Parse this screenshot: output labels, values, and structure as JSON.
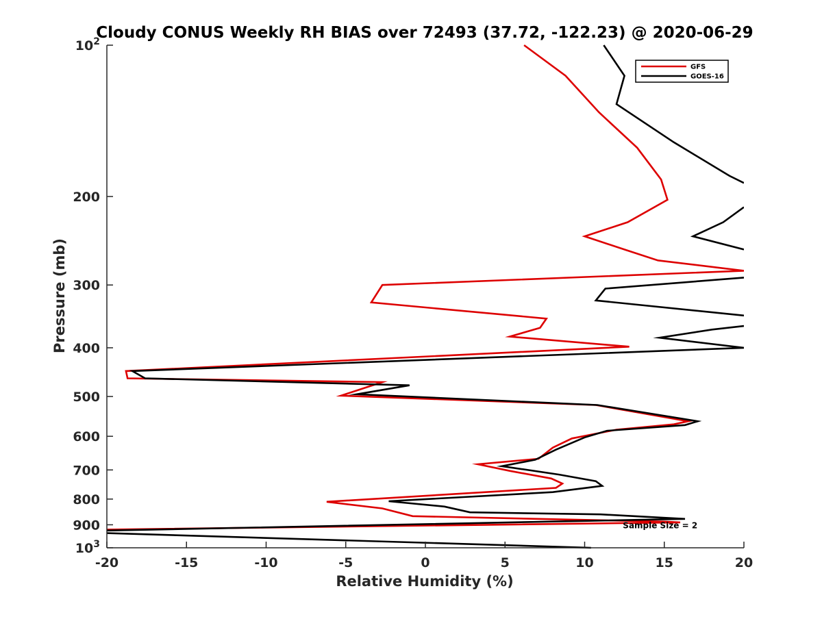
{
  "chart_data": {
    "type": "line",
    "title": "Cloudy CONUS Weekly RH BIAS over 72493 (37.72, -122.23) @ 2020-06-29",
    "xlabel": "Relative Humidity (%)",
    "ylabel": "Pressure (mb)",
    "xlim": [
      -20,
      20
    ],
    "ylim": [
      100,
      1000
    ],
    "y_scale": "log",
    "y_reversed": true,
    "x_ticks": [
      -20,
      -15,
      -10,
      -5,
      0,
      5,
      10,
      15,
      20
    ],
    "y_ticks": [
      {
        "value": 100,
        "base": "10",
        "exp": "2"
      },
      {
        "value": 200,
        "label": "200"
      },
      {
        "value": 300,
        "label": "300"
      },
      {
        "value": 400,
        "label": "400"
      },
      {
        "value": 500,
        "label": "500"
      },
      {
        "value": 600,
        "label": "600"
      },
      {
        "value": 700,
        "label": "700"
      },
      {
        "value": 800,
        "label": "800"
      },
      {
        "value": 900,
        "label": "900"
      },
      {
        "value": 1000,
        "base": "10",
        "exp": "3"
      }
    ],
    "legend_position": "top-right",
    "annotation": "Sample Size = 2",
    "annotation_pressure": 900,
    "annotation_x": 12.4,
    "series": [
      {
        "name": "GFS",
        "color": "#dd0000",
        "points": [
          [
            6.2,
            100
          ],
          [
            8.8,
            115
          ],
          [
            10.9,
            136
          ],
          [
            13.3,
            160
          ],
          [
            14.8,
            185
          ],
          [
            15.2,
            203
          ],
          [
            12.7,
            225
          ],
          [
            10.0,
            240
          ],
          [
            12.5,
            255
          ],
          [
            14.6,
            268
          ],
          [
            20.0,
            281
          ],
          [
            -2.7,
            300
          ],
          [
            -3.4,
            325
          ],
          [
            7.6,
            350
          ],
          [
            7.2,
            365
          ],
          [
            5.3,
            380
          ],
          [
            12.8,
            398
          ],
          [
            -18.8,
            445
          ],
          [
            -18.7,
            460
          ],
          [
            -2.7,
            468
          ],
          [
            -5.3,
            498
          ],
          [
            10.7,
            520
          ],
          [
            16.5,
            560
          ],
          [
            15.6,
            568
          ],
          [
            12.0,
            582
          ],
          [
            9.2,
            606
          ],
          [
            8.0,
            632
          ],
          [
            7.1,
            665
          ],
          [
            3.3,
            682
          ],
          [
            5.3,
            703
          ],
          [
            7.9,
            728
          ],
          [
            8.6,
            745
          ],
          [
            8.2,
            760
          ],
          [
            -6.2,
            810
          ],
          [
            -2.7,
            835
          ],
          [
            -0.8,
            865
          ],
          [
            15.0,
            887
          ],
          [
            16.0,
            890
          ],
          [
            -20.0,
            920
          ]
        ]
      },
      {
        "name": "GOES-16",
        "color": "#000000",
        "points": [
          [
            11.2,
            100
          ],
          [
            12.5,
            115
          ],
          [
            12.0,
            131
          ],
          [
            15.6,
            156
          ],
          [
            19.1,
            182
          ],
          [
            20.0,
            188
          ],
          [
            null,
            null
          ],
          [
            20.0,
            210
          ],
          [
            18.7,
            225
          ],
          [
            16.8,
            240
          ],
          [
            20.0,
            255
          ],
          [
            null,
            null
          ],
          [
            20.0,
            290
          ],
          [
            11.3,
            305
          ],
          [
            10.7,
            322
          ],
          [
            20.0,
            345
          ],
          [
            null,
            null
          ],
          [
            20.0,
            362
          ],
          [
            18.0,
            368
          ],
          [
            14.7,
            382
          ],
          [
            20.0,
            400
          ],
          [
            -18.4,
            445
          ],
          [
            -17.6,
            460
          ],
          [
            -1.0,
            475
          ],
          [
            -4.3,
            495
          ],
          [
            10.8,
            520
          ],
          [
            17.1,
            560
          ],
          [
            16.3,
            570
          ],
          [
            11.4,
            585
          ],
          [
            10.0,
            603
          ],
          [
            8.2,
            638
          ],
          [
            6.9,
            668
          ],
          [
            4.8,
            688
          ],
          [
            8.4,
            715
          ],
          [
            10.7,
            737
          ],
          [
            11.1,
            753
          ],
          [
            8.0,
            775
          ],
          [
            -2.3,
            808
          ],
          [
            1.2,
            828
          ],
          [
            2.8,
            850
          ],
          [
            11.0,
            858
          ],
          [
            16.3,
            876
          ],
          [
            -20.0,
            924
          ],
          [
            null,
            null
          ],
          [
            -20.0,
            935
          ],
          [
            10.4,
            1000
          ]
        ]
      }
    ]
  }
}
